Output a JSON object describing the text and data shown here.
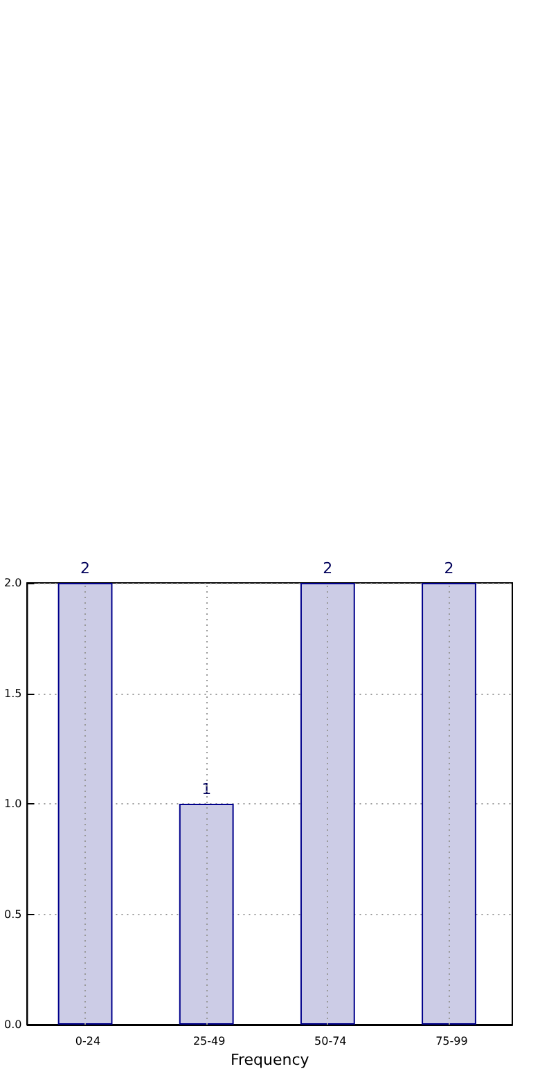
{
  "chart_data": {
    "type": "bar",
    "xlabel": "Frequency",
    "categories": [
      "0-24",
      "25-49",
      "50-74",
      "75-99"
    ],
    "values": [
      2,
      1,
      2,
      2
    ],
    "color": "#cccce6",
    "ylim": [
      0,
      2
    ],
    "yticks": [
      {
        "value": 0,
        "label": "0.0"
      },
      0.5,
      {
        "value": 1,
        "label": "1.0"
      },
      1.5,
      {
        "value": 2,
        "label": "2.0"
      }
    ],
    "grid": true,
    "data_labels": true
  }
}
